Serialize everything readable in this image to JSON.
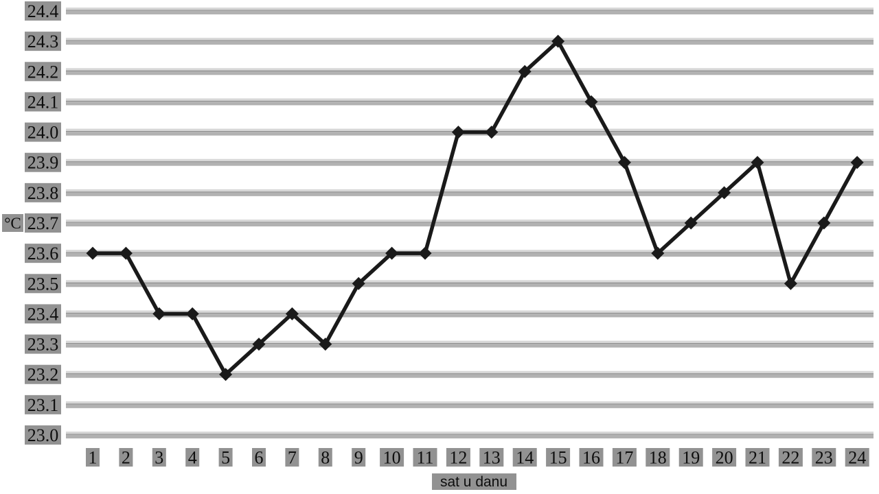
{
  "chart_data": {
    "type": "line",
    "title": "",
    "xlabel": "sat u danu",
    "ylabel": "°C",
    "categories": [
      1,
      2,
      3,
      4,
      5,
      6,
      7,
      8,
      9,
      10,
      11,
      12,
      13,
      14,
      15,
      16,
      17,
      18,
      19,
      20,
      21,
      22,
      23,
      24
    ],
    "values": [
      23.6,
      23.6,
      23.4,
      23.4,
      23.2,
      23.3,
      23.4,
      23.3,
      23.5,
      23.6,
      23.6,
      24.0,
      24.0,
      24.2,
      24.3,
      24.1,
      23.9,
      23.6,
      23.7,
      23.8,
      23.9,
      23.5,
      23.7,
      23.9
    ],
    "yticks": [
      23.0,
      23.1,
      23.2,
      23.3,
      23.4,
      23.5,
      23.6,
      23.7,
      23.8,
      23.9,
      24.0,
      24.1,
      24.2,
      24.3,
      24.4
    ],
    "ylim": [
      23.0,
      24.4
    ],
    "grid": "horizontal-bands",
    "legend": "none",
    "marker": "diamond",
    "colors": {
      "line": "#1a1a1a",
      "marker": "#1a1a1a",
      "gridline_main": "#b2b2b2",
      "gridline_light": "#d7d7d7",
      "gridline_dark": "#8d8d8d",
      "tick_label_bg": "#929292",
      "tick_label_text": "#0e0e0e",
      "background": "#ffffff"
    }
  }
}
